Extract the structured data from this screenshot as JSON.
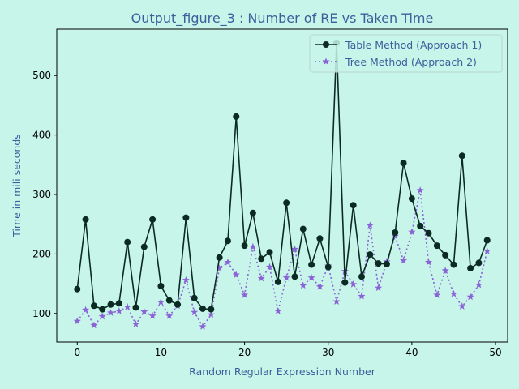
{
  "chart_data": {
    "type": "line",
    "title": "Output_figure_3 : Number of RE vs Taken Time",
    "xlabel": "Random Regular Expression Number",
    "ylabel": "Time in mili seconds",
    "xlim": [
      -2.45,
      51.45
    ],
    "ylim": [
      52,
      578
    ],
    "xticks": [
      0,
      10,
      20,
      30,
      40,
      50
    ],
    "yticks": [
      100,
      200,
      300,
      400,
      500
    ],
    "grid": false,
    "legend": "top-right",
    "colors": {
      "background": "#c8f5ea",
      "text": "#3c5f9c",
      "series1": "#0b2a22",
      "series2": "#8a63d6"
    },
    "x": [
      0,
      1,
      2,
      3,
      4,
      5,
      6,
      7,
      8,
      9,
      10,
      11,
      12,
      13,
      14,
      15,
      16,
      17,
      18,
      19,
      20,
      21,
      22,
      23,
      24,
      25,
      26,
      27,
      28,
      29,
      30,
      31,
      32,
      33,
      34,
      35,
      36,
      37,
      38,
      39,
      40,
      41,
      42,
      43,
      44,
      45,
      46,
      47,
      48,
      49
    ],
    "series": [
      {
        "name": "Table Method (Approach 1)",
        "marker": "circle",
        "line": "solid",
        "values": [
          141,
          258,
          113,
          107,
          115,
          117,
          220,
          110,
          212,
          258,
          146,
          122,
          115,
          261,
          126,
          108,
          107,
          194,
          222,
          431,
          214,
          269,
          192,
          203,
          153,
          286,
          162,
          242,
          182,
          226,
          178,
          555,
          152,
          282,
          162,
          199,
          184,
          183,
          236,
          353,
          293,
          247,
          235,
          214,
          198,
          182,
          365,
          176,
          185,
          223
        ]
      },
      {
        "name": "Tree Method (Approach 2)",
        "marker": "star",
        "line": "dotted",
        "values": [
          87,
          106,
          80,
          95,
          101,
          104,
          111,
          82,
          103,
          96,
          119,
          96,
          113,
          156,
          102,
          78,
          98,
          176,
          186,
          165,
          131,
          212,
          159,
          178,
          104,
          160,
          208,
          147,
          160,
          145,
          180,
          120,
          171,
          149,
          129,
          248,
          143,
          187,
          230,
          189,
          237,
          307,
          186,
          131,
          172,
          133,
          112,
          128,
          148,
          205
        ]
      }
    ]
  }
}
